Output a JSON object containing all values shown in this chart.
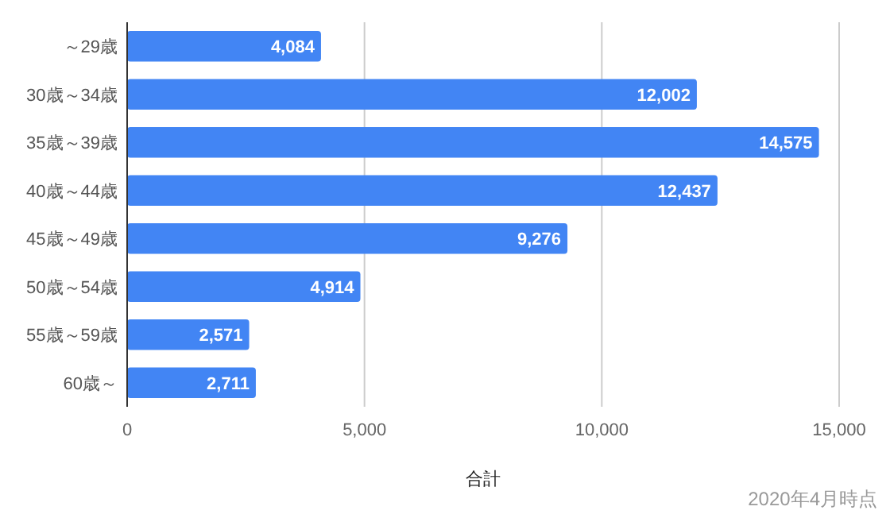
{
  "chart_data": {
    "type": "bar",
    "orientation": "horizontal",
    "categories": [
      "～29歳",
      "30歳～34歳",
      "35歳～39歳",
      "40歳～44歳",
      "45歳～49歳",
      "50歳～54歳",
      "55歳～59歳",
      "60歳～"
    ],
    "values": [
      4084,
      12002,
      14575,
      12437,
      9276,
      4914,
      2571,
      2711
    ],
    "color": "#4285f4",
    "xlim": [
      0,
      15000
    ],
    "xticks": [
      {
        "value": 0,
        "label": "0"
      },
      {
        "value": 5000,
        "label": "5,000"
      },
      {
        "value": 10000,
        "label": "10,000"
      },
      {
        "value": 15000,
        "label": "15,000"
      }
    ],
    "value_labels": [
      "4,084",
      "12,002",
      "14,575",
      "12,437",
      "9,276",
      "4,914",
      "2,571",
      "2,711"
    ],
    "xlabel": "合計",
    "grid": "x",
    "annotations": [
      "2020年4月時点"
    ]
  }
}
